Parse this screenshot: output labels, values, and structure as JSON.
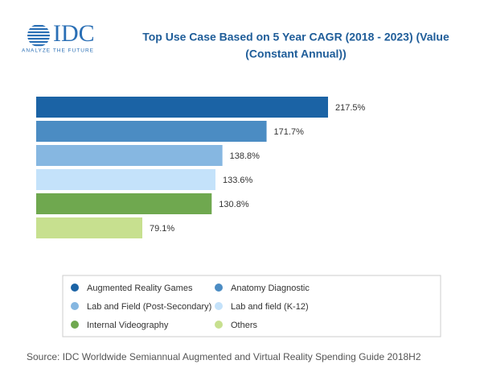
{
  "logo": {
    "text": "IDC",
    "tagline": "ANALYZE THE FUTURE"
  },
  "chart_data": {
    "type": "bar",
    "orientation": "horizontal",
    "title": [
      "Top Use Case Based on 5 Year CAGR  (2018 - 2023) (Value",
      "(Constant Annual))"
    ],
    "categories": [
      "Augmented Reality Games",
      "Anatomy Diagnostic",
      "Lab and Field (Post-Secondary)",
      "Lab and field (K-12)",
      "Internal Videography",
      "Others"
    ],
    "values": [
      217.5,
      171.7,
      138.8,
      133.6,
      130.8,
      79.1
    ],
    "value_labels": [
      "217.5%",
      "171.7%",
      "138.8%",
      "133.6%",
      "130.8%",
      "79.1%"
    ],
    "colors": [
      "#1b63a5",
      "#4b8cc3",
      "#86b7e1",
      "#c4e2fa",
      "#6fa84f",
      "#c7e08f"
    ],
    "legend": "bottom"
  },
  "source": "Source: IDC Worldwide Semiannual Augmented and Virtual Reality Spending Guide 2018H2"
}
